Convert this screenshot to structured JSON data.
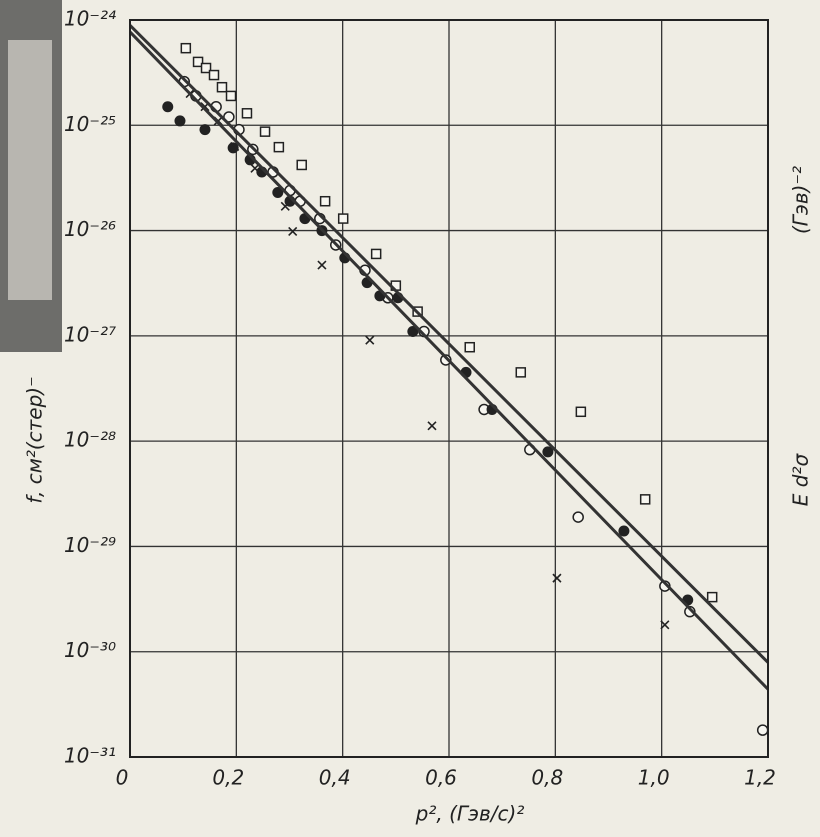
{
  "chart_data": {
    "type": "scatter",
    "yscale": "log",
    "grid": true,
    "xlim": [
      0,
      1.2
    ],
    "ylim": [
      1e-31,
      1e-24
    ],
    "xticks": [
      0,
      {
        "value": 0.2,
        "label": "0,2"
      },
      {
        "value": 0.4,
        "label": "0,4"
      },
      {
        "value": 0.6,
        "label": "0,6"
      },
      {
        "value": 0.8,
        "label": "0,8"
      },
      {
        "value": 1.0,
        "label": "1,0"
      },
      {
        "value": 1.2,
        "label": "1,2"
      }
    ],
    "yticks": [
      {
        "value": 1e-24,
        "label": "10⁻²⁴"
      },
      {
        "value": 1e-25,
        "label": "10⁻²⁵"
      },
      {
        "value": 1e-26,
        "label": "10⁻²⁶"
      },
      {
        "value": 1e-27,
        "label": "10⁻²⁷"
      },
      {
        "value": 1e-28,
        "label": "10⁻²⁸"
      },
      {
        "value": 1e-29,
        "label": "10⁻²⁹"
      },
      {
        "value": 1e-30,
        "label": "10⁻³⁰"
      },
      {
        "value": 1e-31,
        "label": "10⁻³¹"
      }
    ],
    "x_label": "p², (Гэв/с)²",
    "y_label": "f, см²(стер)⁻",
    "annotations": [
      "(Гэв)⁻²",
      "E d²σ"
    ],
    "series": [
      {
        "marker": "square",
        "color": "#222222",
        "x": [
          0.105,
          0.128,
          0.143,
          0.158,
          0.173,
          0.19,
          0.22,
          0.254,
          0.28,
          0.323,
          0.367,
          0.401,
          0.463,
          0.5,
          0.541,
          0.639,
          0.735,
          0.848,
          0.969,
          1.095
        ],
        "values": [
          5.4e-25,
          4e-25,
          3.5e-25,
          3e-25,
          2.3e-25,
          1.9e-25,
          1.3e-25,
          8.7e-26,
          6.2e-26,
          4.2e-26,
          1.9e-26,
          1.3e-26,
          6e-27,
          3e-27,
          1.7e-27,
          7.8e-28,
          4.5e-28,
          1.9e-28,
          2.8e-29,
          3.3e-30
        ]
      },
      {
        "marker": "circle",
        "color": "#222222",
        "x": [
          0.102,
          0.124,
          0.162,
          0.186,
          0.205,
          0.231,
          0.269,
          0.301,
          0.32,
          0.357,
          0.387,
          0.442,
          0.485,
          0.553,
          0.594,
          0.666,
          0.752,
          0.843,
          1.006,
          1.053,
          1.19
        ],
        "values": [
          2.6e-25,
          1.9e-25,
          1.5e-25,
          1.2e-25,
          9.1e-26,
          5.9e-26,
          3.6e-26,
          2.4e-26,
          1.9e-26,
          1.3e-26,
          7.3e-27,
          4.2e-27,
          2.3e-27,
          1.1e-27,
          5.9e-28,
          2e-28,
          8.3e-29,
          1.9e-29,
          4.2e-30,
          2.4e-30,
          1.8e-31
        ]
      },
      {
        "marker": "filled-circle",
        "color": "#222222",
        "x": [
          0.071,
          0.094,
          0.141,
          0.194,
          0.226,
          0.248,
          0.278,
          0.301,
          0.329,
          0.361,
          0.404,
          0.446,
          0.47,
          0.504,
          0.532,
          0.632,
          0.681,
          0.786,
          0.929,
          1.049
        ],
        "values": [
          1.5e-25,
          1.1e-25,
          9.1e-26,
          6.1e-26,
          4.7e-26,
          3.6e-26,
          2.3e-26,
          1.9e-26,
          1.3e-26,
          1e-26,
          5.5e-27,
          3.2e-27,
          2.4e-27,
          2.3e-27,
          1.1e-27,
          4.5e-28,
          2e-28,
          7.9e-29,
          1.4e-29,
          3.1e-30
        ]
      },
      {
        "marker": "cross",
        "color": "#222222",
        "x": [
          0.113,
          0.141,
          0.166,
          0.197,
          0.235,
          0.292,
          0.306,
          0.361,
          0.451,
          0.568,
          0.803,
          1.006
        ],
        "values": [
          2e-25,
          1.5e-25,
          1.1e-25,
          6.3e-26,
          3.9e-26,
          1.7e-26,
          9.8e-27,
          4.7e-27,
          9.1e-28,
          1.4e-28,
          5e-30,
          1.8e-30
        ]
      },
      {
        "marker": "line",
        "color": "#333333",
        "x": [
          0,
          1.2
        ],
        "values": [
          8.9e-25,
          7.9e-31
        ]
      },
      {
        "marker": "line",
        "color": "#333333",
        "x": [
          0,
          1.2
        ],
        "values": [
          7.7e-25,
          4.4e-31
        ]
      }
    ]
  }
}
